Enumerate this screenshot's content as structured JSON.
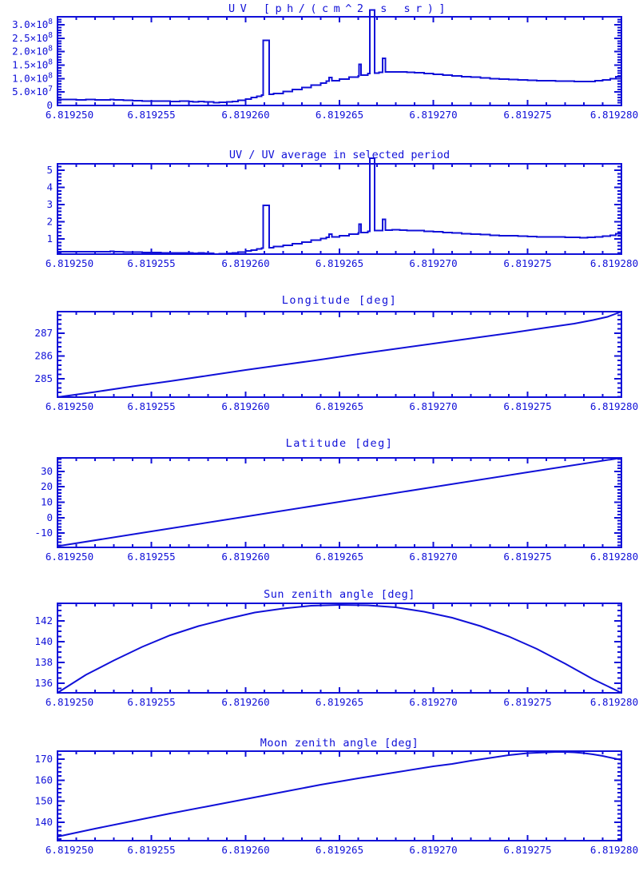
{
  "page": {
    "background": "#ffffff",
    "accent_color": "#1010d8"
  },
  "chart_data": [
    {
      "type": "line",
      "slug": "uv",
      "title": "UV [ph/(cm^2 s sr)]",
      "x_base": 6.81925,
      "x_scale": 1e-06,
      "xlim": [
        0,
        30
      ],
      "x_major_step": 5,
      "x_minor_step": 1,
      "x_tick_labels": [
        "6.819250",
        "6.819255",
        "6.819260",
        "6.819265",
        "6.819270",
        "6.819275",
        "6.819280"
      ],
      "ylim": [
        0,
        330000000.0
      ],
      "y_ticks": [
        0,
        50000000.0,
        100000000.0,
        150000000.0,
        200000000.0,
        250000000.0,
        300000000.0
      ],
      "y_tick_labels": [
        "0",
        "5.0×10^7",
        "1.0×10^8",
        "1.5×10^8",
        "2.0×10^8",
        "2.5×10^8",
        "3.0×10^8"
      ],
      "y_minor_step": 10000000.0,
      "value_scale": 10000000.0,
      "step": true,
      "x": [
        0,
        0.5,
        1,
        1.5,
        2,
        2.5,
        2.8,
        3,
        3.5,
        4,
        4.5,
        5,
        5.5,
        6,
        6.3,
        6.5,
        7,
        7.2,
        7.5,
        7.8,
        8,
        8.3,
        8.6,
        9,
        9.3,
        9.6,
        10,
        10.3,
        10.6,
        10.85,
        10.95,
        11.1,
        11.25,
        11.5,
        12,
        12.5,
        13,
        13.5,
        14,
        14.3,
        14.45,
        14.6,
        15,
        15.5,
        16,
        16.05,
        16.15,
        16.5,
        16.62,
        16.74,
        16.86,
        17.1,
        17.3,
        17.45,
        17.8,
        18.2,
        18.6,
        19,
        19.5,
        20,
        20.5,
        21,
        21.5,
        22,
        22.5,
        23,
        23.5,
        24,
        24.5,
        25,
        25.5,
        26,
        26.5,
        27,
        27.5,
        27.8,
        28.2,
        28.6,
        29,
        29.4,
        29.7,
        30
      ],
      "values": [
        2.2,
        2.2,
        2.1,
        2.2,
        2.05,
        2.1,
        2.3,
        2.05,
        1.95,
        1.85,
        1.7,
        1.7,
        1.6,
        1.55,
        1.45,
        1.6,
        1.45,
        1.4,
        1.5,
        1.3,
        1.35,
        1.0,
        1.15,
        1.3,
        1.55,
        1.9,
        2.45,
        2.95,
        3.45,
        3.85,
        24.2,
        24.2,
        4.1,
        4.5,
        5.2,
        5.9,
        6.7,
        7.6,
        8.35,
        9.0,
        10.4,
        9.25,
        9.85,
        10.5,
        11.05,
        15.3,
        11.25,
        11.9,
        35.5,
        35.5,
        12.1,
        12.3,
        17.6,
        12.45,
        12.55,
        12.45,
        12.3,
        12.15,
        11.9,
        11.65,
        11.3,
        11.05,
        10.75,
        10.5,
        10.25,
        10.0,
        9.85,
        9.65,
        9.5,
        9.35,
        9.25,
        9.2,
        9.1,
        9.0,
        8.95,
        8.85,
        8.95,
        9.2,
        9.5,
        10.0,
        10.65,
        11.3
      ]
    },
    {
      "type": "line",
      "slug": "uv-ratio",
      "title": "UV / UV average in selected period",
      "x_base": 6.81925,
      "x_scale": 1e-06,
      "xlim": [
        0,
        30
      ],
      "x_major_step": 5,
      "x_minor_step": 1,
      "x_tick_labels": [
        "6.819250",
        "6.819255",
        "6.819260",
        "6.819265",
        "6.819270",
        "6.819275",
        "6.819280"
      ],
      "ylim": [
        0.12,
        5.37
      ],
      "y_ticks": [
        1,
        2,
        3,
        4,
        5
      ],
      "y_tick_labels": [
        "1",
        "2",
        "3",
        "4",
        "5"
      ],
      "y_minor_step": 0.2,
      "value_scale": 1,
      "step": true,
      "x": [
        0,
        0.5,
        1,
        1.5,
        2,
        2.5,
        2.8,
        3,
        3.5,
        4,
        4.5,
        5,
        5.5,
        6,
        6.3,
        6.5,
        7,
        7.2,
        7.5,
        7.8,
        8,
        8.3,
        8.6,
        9,
        9.3,
        9.6,
        10,
        10.3,
        10.6,
        10.85,
        10.95,
        11.1,
        11.25,
        11.5,
        12,
        12.5,
        13,
        13.5,
        14,
        14.3,
        14.45,
        14.6,
        15,
        15.5,
        16,
        16.05,
        16.15,
        16.5,
        16.62,
        16.74,
        16.86,
        17.1,
        17.3,
        17.45,
        17.8,
        18.2,
        18.6,
        19,
        19.5,
        20,
        20.5,
        21,
        21.5,
        22,
        22.5,
        23,
        23.5,
        24,
        24.5,
        25,
        25.5,
        26,
        26.5,
        27,
        27.5,
        27.8,
        28.2,
        28.6,
        29,
        29.4,
        29.7,
        30
      ],
      "values": [
        0.27,
        0.27,
        0.26,
        0.27,
        0.25,
        0.26,
        0.28,
        0.25,
        0.24,
        0.23,
        0.21,
        0.21,
        0.2,
        0.19,
        0.18,
        0.2,
        0.18,
        0.17,
        0.18,
        0.16,
        0.16,
        0.12,
        0.14,
        0.16,
        0.19,
        0.23,
        0.3,
        0.36,
        0.42,
        0.47,
        2.95,
        2.95,
        0.5,
        0.55,
        0.63,
        0.72,
        0.82,
        0.93,
        1.02,
        1.1,
        1.27,
        1.13,
        1.2,
        1.28,
        1.35,
        1.87,
        1.37,
        1.45,
        5.7,
        5.7,
        1.48,
        1.5,
        2.15,
        1.52,
        1.53,
        1.52,
        1.5,
        1.48,
        1.45,
        1.42,
        1.38,
        1.35,
        1.31,
        1.28,
        1.25,
        1.22,
        1.2,
        1.18,
        1.16,
        1.14,
        1.13,
        1.12,
        1.11,
        1.1,
        1.09,
        1.08,
        1.09,
        1.12,
        1.16,
        1.22,
        1.3,
        1.38
      ]
    },
    {
      "type": "line",
      "slug": "longitude",
      "title": "Longitude [deg]",
      "x_base": 6.81925,
      "x_scale": 1e-06,
      "xlim": [
        0,
        30
      ],
      "x_major_step": 5,
      "x_minor_step": 1,
      "x_tick_labels": [
        "6.819250",
        "6.819255",
        "6.819260",
        "6.819265",
        "6.819270",
        "6.819275",
        "6.819280"
      ],
      "ylim": [
        284.19,
        287.95
      ],
      "y_ticks": [
        285,
        286,
        287
      ],
      "y_tick_labels": [
        "285",
        "286",
        "287"
      ],
      "y_minor_step": 0.2,
      "value_scale": 1,
      "step": false,
      "x": [
        0,
        2,
        4,
        6,
        8,
        10,
        12,
        14,
        16,
        18,
        20,
        22,
        24,
        26,
        27.5,
        28.5,
        29.25,
        30
      ],
      "values": [
        284.19,
        284.42,
        284.66,
        284.9,
        285.14,
        285.38,
        285.62,
        285.85,
        286.08,
        286.31,
        286.54,
        286.77,
        287.0,
        287.24,
        287.42,
        287.58,
        287.72,
        287.95
      ]
    },
    {
      "type": "line",
      "slug": "latitude",
      "title": "Latitude [deg]",
      "x_base": 6.81925,
      "x_scale": 1e-06,
      "xlim": [
        0,
        30
      ],
      "x_major_step": 5,
      "x_minor_step": 1,
      "x_tick_labels": [
        "6.819250",
        "6.819255",
        "6.819260",
        "6.819265",
        "6.819270",
        "6.819275",
        "6.819280"
      ],
      "ylim": [
        -19.35,
        38.83
      ],
      "y_ticks": [
        -10,
        0,
        10,
        20,
        30
      ],
      "y_tick_labels": [
        "-10",
        "0",
        "10",
        "20",
        "30"
      ],
      "y_minor_step": 2,
      "value_scale": 1,
      "step": false,
      "x": [
        0,
        5,
        10,
        15,
        20,
        25,
        30
      ],
      "values": [
        -18.6,
        -9.0,
        0.6,
        10.2,
        19.8,
        29.4,
        38.8
      ]
    },
    {
      "type": "line",
      "slug": "sun-zenith",
      "title": "Sun zenith angle [deg]",
      "x_base": 6.81925,
      "x_scale": 1e-06,
      "xlim": [
        0,
        30
      ],
      "x_major_step": 5,
      "x_minor_step": 1,
      "x_tick_labels": [
        "6.819250",
        "6.819255",
        "6.819260",
        "6.819265",
        "6.819270",
        "6.819275",
        "6.819280"
      ],
      "ylim": [
        135.08,
        143.69
      ],
      "y_ticks": [
        136,
        138,
        140,
        142
      ],
      "y_tick_labels": [
        "136",
        "138",
        "140",
        "142"
      ],
      "y_minor_step": 0.5,
      "value_scale": 1,
      "step": false,
      "x": [
        0,
        1.5,
        3,
        4.5,
        6,
        7.5,
        9,
        10.5,
        12,
        13.5,
        15,
        16.5,
        18,
        19.5,
        21,
        22.5,
        24,
        25.5,
        27,
        28.5,
        30
      ],
      "values": [
        135.08,
        136.8,
        138.2,
        139.5,
        140.6,
        141.5,
        142.2,
        142.8,
        143.2,
        143.45,
        143.55,
        143.5,
        143.3,
        142.9,
        142.3,
        141.5,
        140.5,
        139.3,
        137.9,
        136.4,
        135.08
      ]
    },
    {
      "type": "line",
      "slug": "moon-zenith",
      "title": "Moon zenith angle [deg]",
      "x_base": 6.81925,
      "x_scale": 1e-06,
      "xlim": [
        0,
        30
      ],
      "x_major_step": 5,
      "x_minor_step": 1,
      "x_tick_labels": [
        "6.819250",
        "6.819255",
        "6.819260",
        "6.819265",
        "6.819270",
        "6.819275",
        "6.819280"
      ],
      "ylim": [
        131.3,
        173.8
      ],
      "y_ticks": [
        140,
        150,
        160,
        170
      ],
      "y_tick_labels": [
        "140",
        "150",
        "160",
        "170"
      ],
      "y_minor_step": 2,
      "value_scale": 1,
      "step": false,
      "x": [
        0,
        2,
        4,
        6,
        8,
        10,
        12,
        14,
        16,
        18,
        20,
        21,
        22,
        23,
        24,
        25,
        25.5,
        26,
        26.5,
        27,
        27.5,
        28,
        28.5,
        29,
        29.5,
        30
      ],
      "values": [
        133.2,
        136.9,
        140.6,
        144.2,
        147.7,
        151.1,
        154.5,
        157.8,
        160.9,
        163.8,
        166.5,
        167.8,
        169.2,
        170.6,
        171.9,
        172.8,
        173.1,
        173.3,
        173.4,
        173.4,
        173.2,
        172.9,
        172.3,
        171.5,
        170.6,
        169.6
      ]
    }
  ]
}
